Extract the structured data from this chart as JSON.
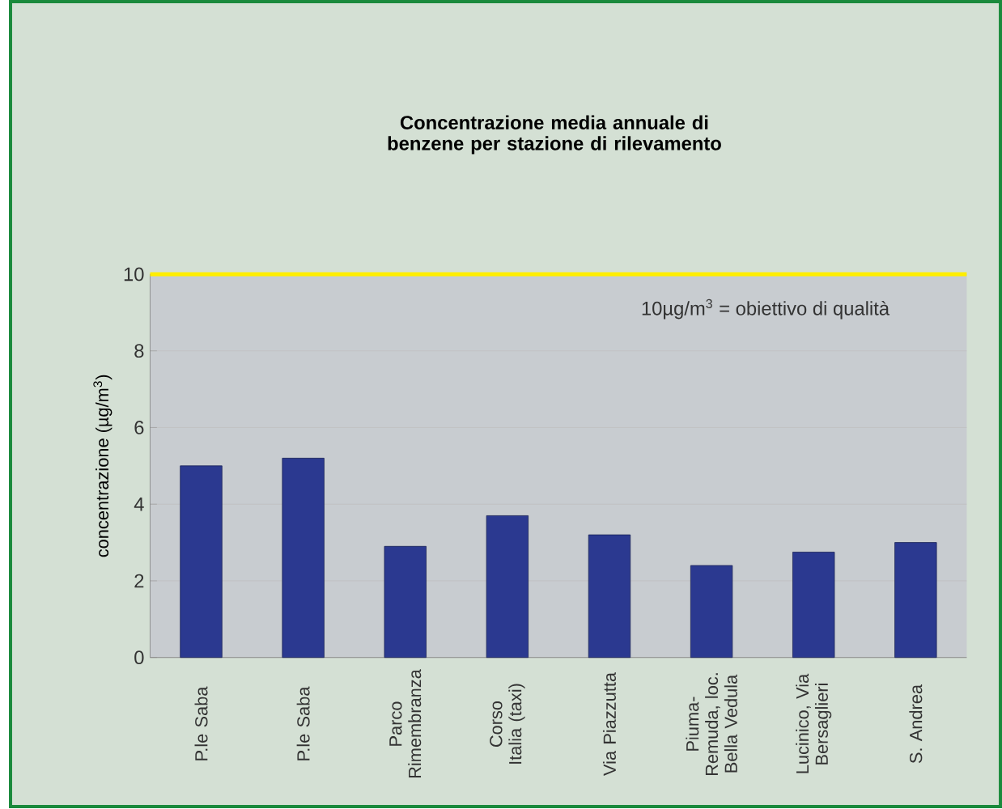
{
  "chart_data": {
    "type": "bar",
    "title": "Concentrazione media annuale di benzene per stazione di rilevamento",
    "ylabel": "concentrazione (µg/m$^{3}$)",
    "categories": [
      "P.le Saba",
      "P.le Saba",
      "Parco Rimembranza",
      "Corso Italia (taxi)",
      "Via Piazzutta",
      "Piuma-Remuda, loc. Bella Vedula",
      "Lucinico, Via Bersaglieri",
      "S. Andrea"
    ],
    "values": [
      5.0,
      5.2,
      2.9,
      3.7,
      3.2,
      2.4,
      2.75,
      3.0
    ],
    "color": "#2b3990",
    "ylim": [
      0,
      10
    ],
    "yticks": [
      0,
      2,
      4,
      6,
      8,
      10
    ],
    "grid": "y",
    "ref_lines": [
      {
        "axis": "y",
        "value": 10,
        "label": "10µg/m$^{3}$ = obiettivo di qualità",
        "color": "#ffee00"
      }
    ]
  }
}
